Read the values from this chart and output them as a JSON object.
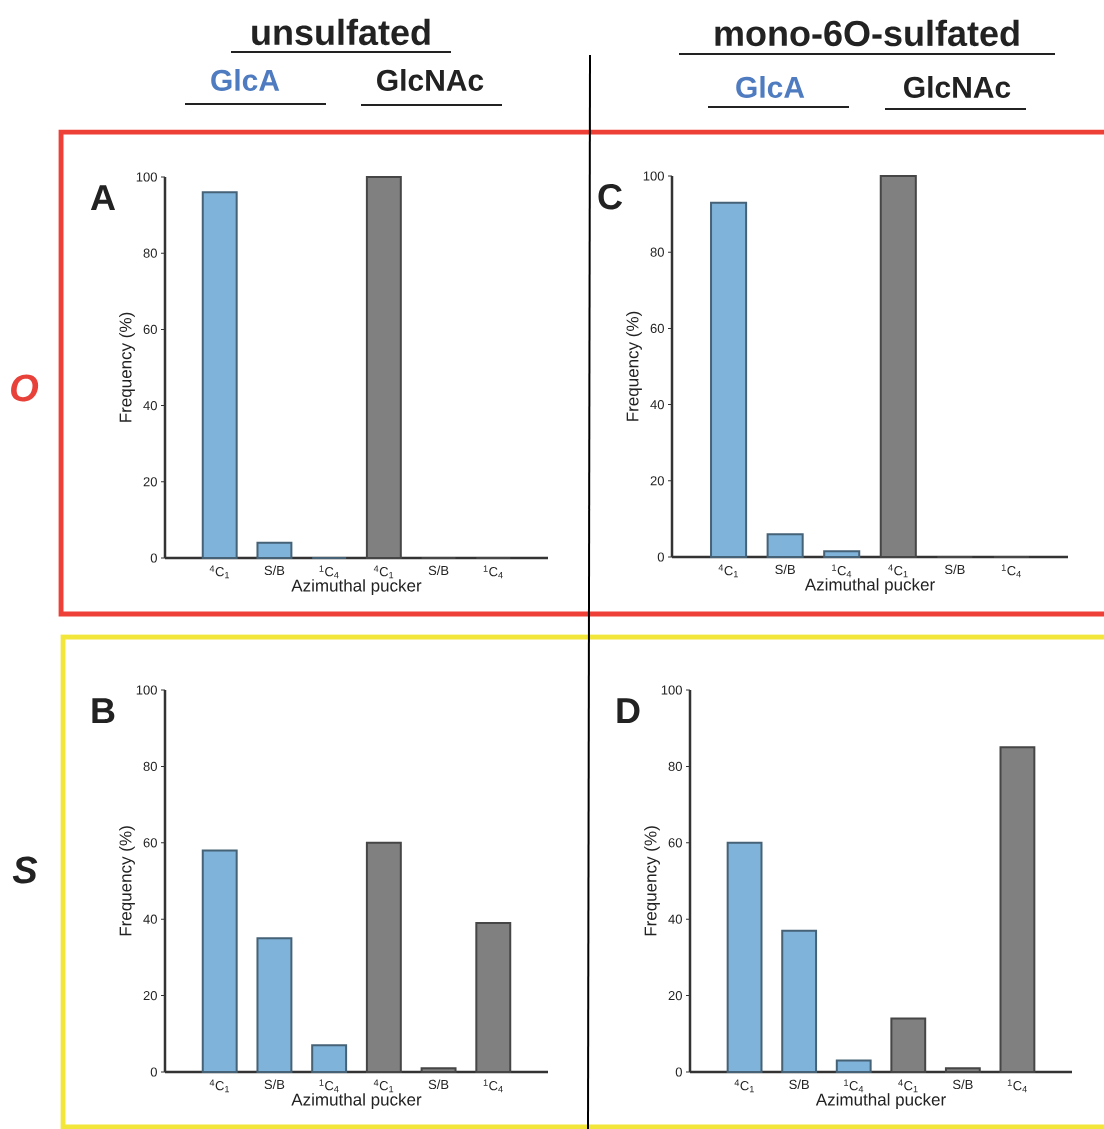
{
  "chart_data": [
    {
      "type": "bar",
      "title": "A",
      "xlabel": "Azimuthal pucker",
      "ylabel": "Frequency (%)",
      "categories": [
        "$^{4}$C$_{1}$",
        "S/B",
        "$^{1}$C$_{4}$",
        "$^{4}$C$_{1}$",
        "S/B",
        "$^{1}$C$_{4}$"
      ],
      "values": [
        96,
        4,
        0,
        100,
        0,
        0
      ],
      "colors": [
        "#7fb3d9",
        "#7fb3d9",
        "#7fb3d9",
        "#808080",
        "#808080",
        "#808080"
      ],
      "ylim": [
        0,
        100
      ],
      "yticks": [
        0,
        20,
        40,
        60,
        80,
        100
      ],
      "grid": false,
      "annotations": [
        "unsulfated",
        "GlcA",
        "GlcNAc",
        "O"
      ]
    },
    {
      "type": "bar",
      "title": "C",
      "xlabel": "Azimuthal pucker",
      "ylabel": "Frequency (%)",
      "categories": [
        "$^{4}$C$_{1}$",
        "S/B",
        "$^{1}$C$_{4}$",
        "$^{4}$C$_{1}$",
        "S/B",
        "$^{1}$C$_{4}$"
      ],
      "values": [
        93,
        6,
        1.5,
        100,
        0,
        0
      ],
      "colors": [
        "#7fb3d9",
        "#7fb3d9",
        "#7fb3d9",
        "#808080",
        "#808080",
        "#808080"
      ],
      "ylim": [
        0,
        100
      ],
      "yticks": [
        0,
        20,
        40,
        60,
        80,
        100
      ],
      "grid": false,
      "annotations": [
        "mono-6O-sulfated",
        "GlcA",
        "GlcNAc"
      ]
    },
    {
      "type": "bar",
      "title": "B",
      "xlabel": "Azimuthal pucker",
      "ylabel": "Frequency (%)",
      "categories": [
        "$^{4}$C$_{1}$",
        "S/B",
        "$^{1}$C$_{4}$",
        "$^{4}$C$_{1}$",
        "S/B",
        "$^{1}$C$_{4}$"
      ],
      "values": [
        58,
        35,
        7,
        60,
        1,
        39
      ],
      "colors": [
        "#7fb3d9",
        "#7fb3d9",
        "#7fb3d9",
        "#808080",
        "#808080",
        "#808080"
      ],
      "ylim": [
        0,
        100
      ],
      "yticks": [
        0,
        20,
        40,
        60,
        80,
        100
      ],
      "grid": false,
      "annotations": [
        "S"
      ]
    },
    {
      "type": "bar",
      "title": "D",
      "xlabel": "Azimuthal pucker",
      "ylabel": "Frequency (%)",
      "categories": [
        "$^{4}$C$_{1}$",
        "S/B",
        "$^{1}$C$_{4}$",
        "$^{4}$C$_{1}$",
        "S/B",
        "$^{1}$C$_{4}$"
      ],
      "values": [
        60,
        37,
        3,
        14,
        1,
        85
      ],
      "colors": [
        "#7fb3d9",
        "#7fb3d9",
        "#7fb3d9",
        "#808080",
        "#808080",
        "#808080"
      ],
      "ylim": [
        0,
        100
      ],
      "yticks": [
        0,
        20,
        40,
        60,
        80,
        100
      ],
      "grid": false
    }
  ]
}
